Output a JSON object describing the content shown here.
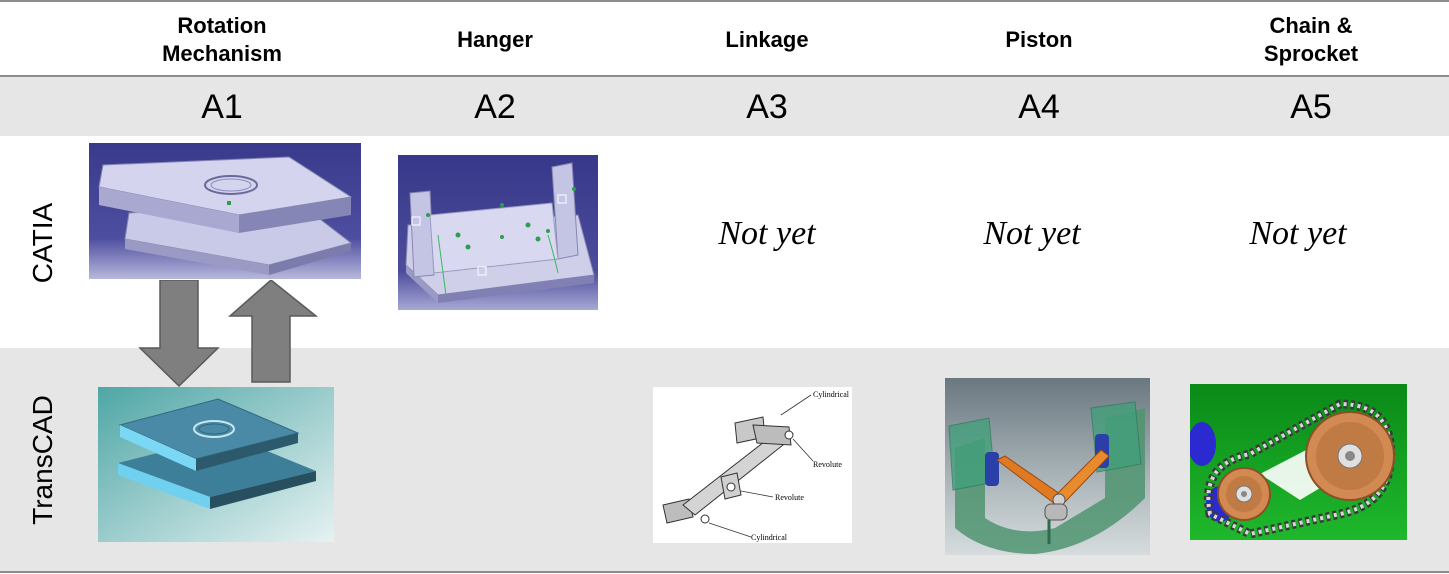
{
  "columns": [
    {
      "title": "Rotation\nMechanism",
      "code": "A1"
    },
    {
      "title": "Hanger",
      "code": "A2"
    },
    {
      "title": "Linkage",
      "code": "A3"
    },
    {
      "title": "Piston",
      "code": "A4"
    },
    {
      "title": "Chain &\nSprocket",
      "code": "A5"
    }
  ],
  "rows": {
    "catia": "CATIA",
    "transcad": "TransCAD"
  },
  "catia_status": {
    "a3": "Not yet",
    "a4": "Not yet",
    "a5": "Not yet"
  },
  "linkage_labels": {
    "cyl_top": "Cylindrical",
    "rev_top": "Revolute",
    "rev_mid": "Revolute",
    "cyl_bottom": "Cylindrical"
  }
}
